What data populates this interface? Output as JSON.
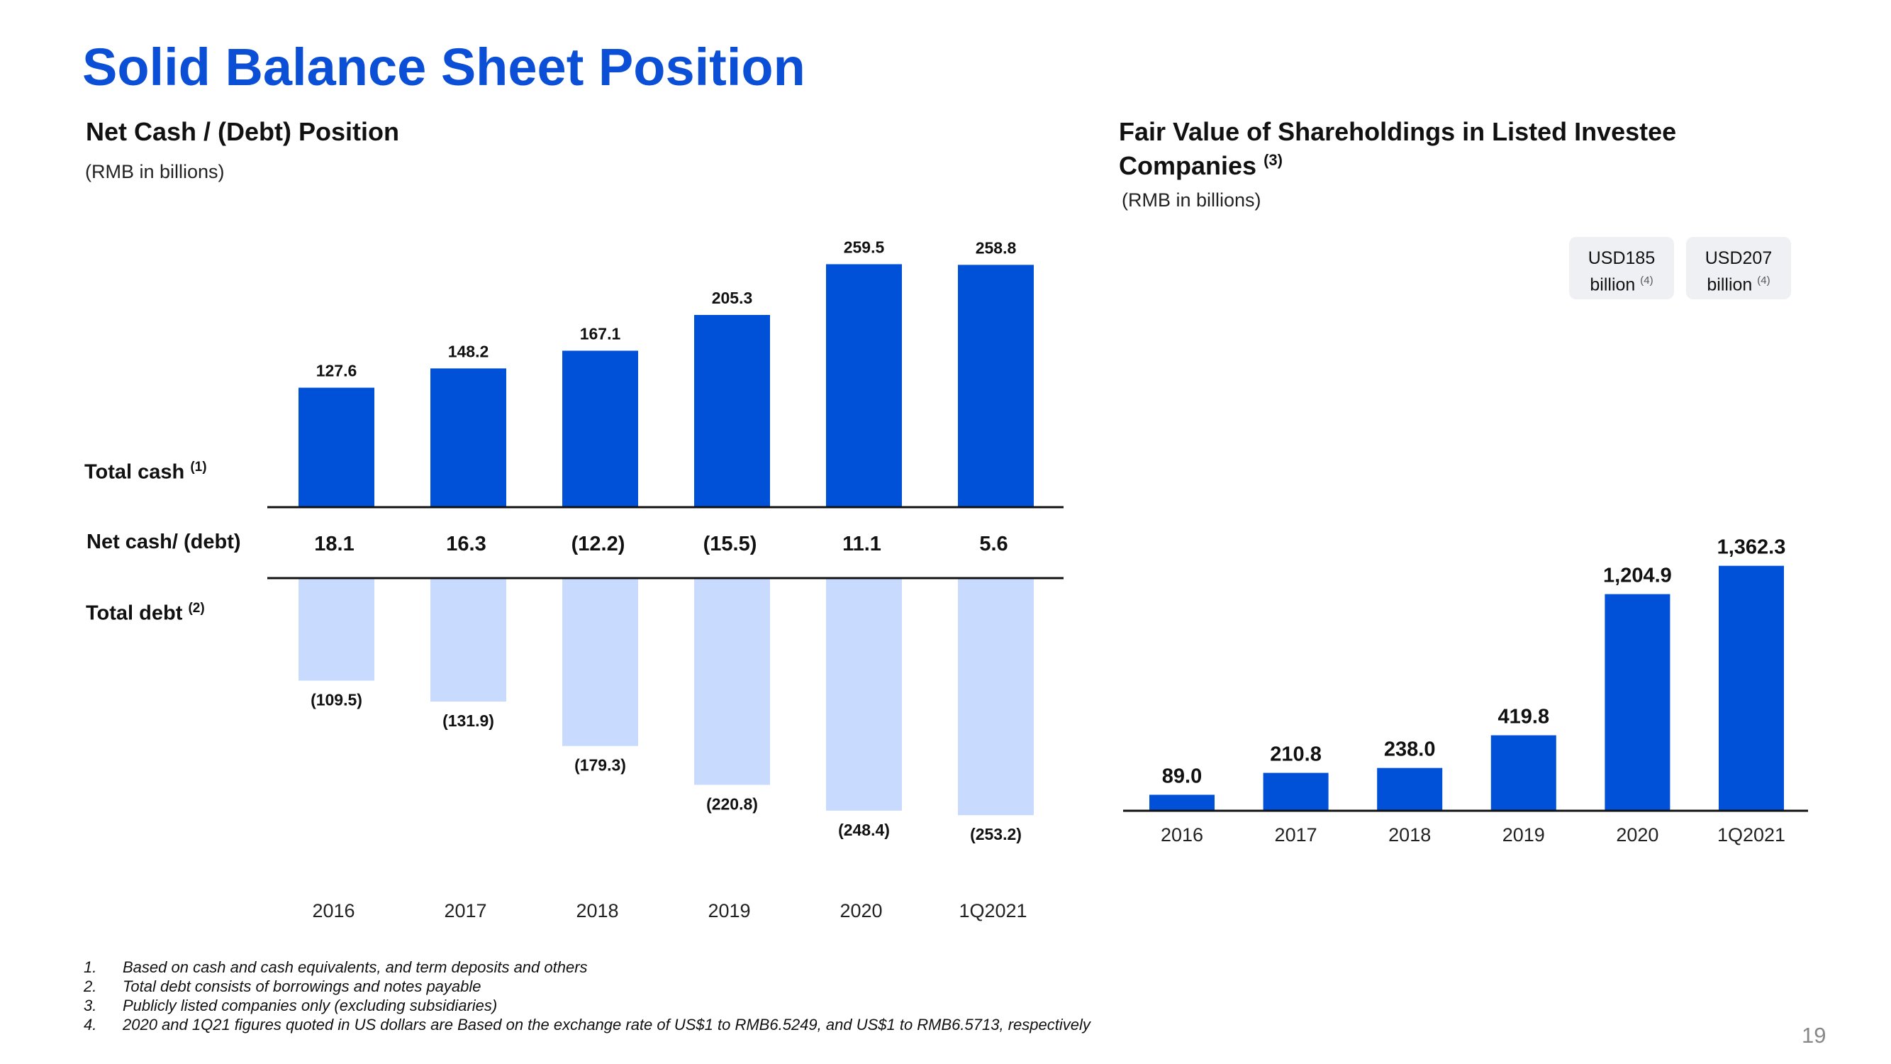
{
  "page": {
    "title": "Solid Balance Sheet Position",
    "page_number": "19",
    "colors": {
      "accent": "#0a4fd6",
      "bar_dark": "#0050d8",
      "bar_light": "#c8dbff",
      "box_bg": "#eef0f3"
    }
  },
  "left_chart": {
    "heading": "Net Cash / (Debt) Position",
    "unit": "(RMB in billions)",
    "row_labels": {
      "total_cash": "Total cash",
      "total_cash_ref": "(1)",
      "net": "Net cash/ (debt)",
      "total_debt": "Total debt",
      "total_debt_ref": "(2)"
    }
  },
  "right_chart": {
    "heading_line1": "Fair Value of Shareholdings  in Listed Investee",
    "heading_line2": "Companies",
    "heading_ref": "(3)",
    "unit": "(RMB in billions)",
    "usd_boxes": [
      {
        "line1": "USD185",
        "line2": "billion",
        "ref": "(4)"
      },
      {
        "line1": "USD207",
        "line2": "billion",
        "ref": "(4)"
      }
    ]
  },
  "chart_data": [
    {
      "type": "bar",
      "categories": [
        "2016",
        "2017",
        "2018",
        "2019",
        "2020",
        "1Q2021"
      ],
      "series": [
        {
          "name": "Total cash",
          "values": [
            127.6,
            148.2,
            167.1,
            205.3,
            259.5,
            258.8
          ],
          "labels": [
            "127.6",
            "148.2",
            "167.1",
            "205.3",
            "259.5",
            "258.8"
          ]
        },
        {
          "name": "Net cash/ (debt)",
          "values": [
            18.1,
            16.3,
            -12.2,
            -15.5,
            11.1,
            5.6
          ],
          "labels": [
            "18.1",
            "16.3",
            "(12.2)",
            "(15.5)",
            "11.1",
            "5.6"
          ]
        },
        {
          "name": "Total debt",
          "values": [
            -109.5,
            -131.9,
            -179.3,
            -220.8,
            -248.4,
            -253.2
          ],
          "labels": [
            "(109.5)",
            "(131.9)",
            "(179.3)",
            "(220.8)",
            "(248.4)",
            "(253.2)"
          ]
        }
      ],
      "ylabel": "(RMB in billions)"
    },
    {
      "type": "bar",
      "categories": [
        "2016",
        "2017",
        "2018",
        "2019",
        "2020",
        "1Q2021"
      ],
      "values": [
        89.0,
        210.8,
        238.0,
        419.8,
        1204.9,
        1362.3
      ],
      "labels": [
        "89.0",
        "210.8",
        "238.0",
        "419.8",
        "1,204.9",
        "1,362.3"
      ],
      "ylabel": "(RMB in billions)"
    }
  ],
  "footnotes": [
    {
      "num": "1.",
      "text": "Based on cash and cash equivalents, and term deposits and others"
    },
    {
      "num": "2.",
      "text": "Total debt consists of borrowings and notes payable"
    },
    {
      "num": "3.",
      "text": "Publicly listed companies only (excluding subsidiaries)"
    },
    {
      "num": "4.",
      "text": "2020 and 1Q21 figures quoted in US dollars are Based on the exchange rate of US$1 to RMB6.5249, and US$1 to RMB6.5713, respectively"
    }
  ]
}
